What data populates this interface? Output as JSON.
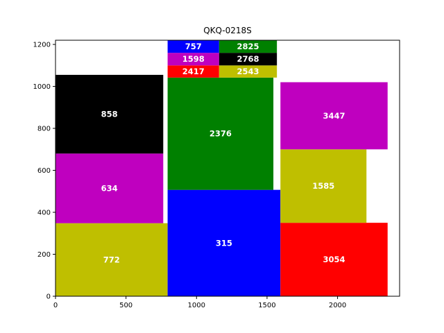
{
  "chart_data": {
    "type": "treemap",
    "title": "QKQ-0218S",
    "xlabel": "",
    "ylabel": "",
    "xlim": [
      0,
      2440
    ],
    "ylim": [
      0,
      1220
    ],
    "x_ticks": [
      0,
      500,
      1000,
      1500,
      2000
    ],
    "y_ticks": [
      0,
      200,
      400,
      600,
      800,
      1000,
      1200
    ],
    "grid": false,
    "colors": {
      "olive": "#bfbf00",
      "magenta": "#bf00bf",
      "black": "#000000",
      "blue": "#0000ff",
      "green": "#008000",
      "red": "#ff0000"
    },
    "rects": [
      {
        "label": "772",
        "value": 772,
        "x0": 0,
        "x1": 795,
        "y0": 0,
        "y1": 348,
        "color": "olive"
      },
      {
        "label": "634",
        "value": 634,
        "x0": 0,
        "x1": 764,
        "y0": 348,
        "y1": 680,
        "color": "magenta"
      },
      {
        "label": "858",
        "value": 858,
        "x0": 0,
        "x1": 764,
        "y0": 680,
        "y1": 1055,
        "color": "black"
      },
      {
        "label": "315",
        "value": 315,
        "x0": 795,
        "x1": 1595,
        "y0": 0,
        "y1": 507,
        "color": "blue"
      },
      {
        "label": "2376",
        "value": 2376,
        "x0": 795,
        "x1": 1545,
        "y0": 507,
        "y1": 1042,
        "color": "green"
      },
      {
        "label": "2417",
        "value": 2417,
        "x0": 795,
        "x1": 1160,
        "y0": 1042,
        "y1": 1100,
        "color": "red"
      },
      {
        "label": "2543",
        "value": 2543,
        "x0": 1160,
        "x1": 1570,
        "y0": 1042,
        "y1": 1100,
        "color": "olive"
      },
      {
        "label": "1598",
        "value": 1598,
        "x0": 795,
        "x1": 1160,
        "y0": 1100,
        "y1": 1160,
        "color": "magenta"
      },
      {
        "label": "2768",
        "value": 2768,
        "x0": 1160,
        "x1": 1570,
        "y0": 1100,
        "y1": 1160,
        "color": "black"
      },
      {
        "label": "757",
        "value": 757,
        "x0": 795,
        "x1": 1160,
        "y0": 1160,
        "y1": 1220,
        "color": "blue"
      },
      {
        "label": "2825",
        "value": 2825,
        "x0": 1160,
        "x1": 1570,
        "y0": 1160,
        "y1": 1220,
        "color": "green"
      },
      {
        "label": "3054",
        "value": 3054,
        "x0": 1595,
        "x1": 2355,
        "y0": 0,
        "y1": 350,
        "color": "red"
      },
      {
        "label": "1585",
        "value": 1585,
        "x0": 1595,
        "x1": 2205,
        "y0": 350,
        "y1": 700,
        "color": "olive"
      },
      {
        "label": "3447",
        "value": 3447,
        "x0": 1595,
        "x1": 2355,
        "y0": 700,
        "y1": 1020,
        "color": "magenta"
      }
    ]
  }
}
